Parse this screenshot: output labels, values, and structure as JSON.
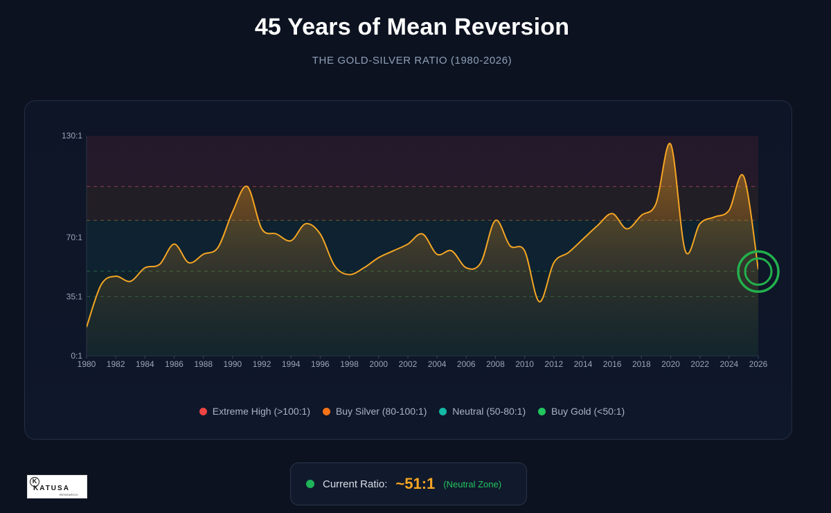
{
  "header": {
    "title": "45 Years of Mean Reversion",
    "subtitle": "THE GOLD-SILVER RATIO (1980-2026)"
  },
  "chart_data": {
    "type": "area",
    "title": "45 Years of Mean Reversion",
    "subtitle": "THE GOLD-SILVER RATIO (1980-2026)",
    "xlabel": "",
    "ylabel": "",
    "xlim": [
      1980,
      2026
    ],
    "ylim": [
      0,
      130
    ],
    "x_ticks": [
      "1980",
      "1982",
      "1984",
      "1986",
      "1988",
      "1990",
      "1992",
      "1994",
      "1996",
      "1998",
      "2000",
      "2002",
      "2004",
      "2006",
      "2008",
      "2010",
      "2012",
      "2014",
      "2016",
      "2018",
      "2020",
      "2022",
      "2024",
      "2026"
    ],
    "y_ticks": [
      {
        "value": 0,
        "label": "0:1"
      },
      {
        "value": 35,
        "label": "35:1"
      },
      {
        "value": 70,
        "label": "70:1"
      },
      {
        "value": 130,
        "label": "130:1"
      }
    ],
    "zones": [
      {
        "name": "Extreme High",
        "from": 100,
        "to": 130,
        "color": "#ef4444"
      },
      {
        "name": "Buy Silver",
        "from": 80,
        "to": 100,
        "color": "#f97316"
      },
      {
        "name": "Neutral",
        "from": 50,
        "to": 80,
        "color": "#14b8a6"
      },
      {
        "name": "Buy Gold",
        "from": 0,
        "to": 50,
        "color": "#22c55e"
      }
    ],
    "reference_lines": [
      100,
      80,
      50,
      35
    ],
    "series": [
      {
        "name": "Gold-Silver Ratio",
        "color": "#f5a623",
        "x": [
          1980,
          1981,
          1982,
          1983,
          1984,
          1985,
          1986,
          1987,
          1988,
          1989,
          1990,
          1991,
          1992,
          1993,
          1994,
          1995,
          1996,
          1997,
          1998,
          1999,
          2000,
          2001,
          2002,
          2003,
          2004,
          2005,
          2006,
          2007,
          2008,
          2009,
          2010,
          2011,
          2012,
          2013,
          2014,
          2015,
          2016,
          2017,
          2018,
          2019,
          2020,
          2021,
          2022,
          2023,
          2024,
          2025,
          2026
        ],
        "values": [
          17,
          42,
          47,
          44,
          52,
          54,
          66,
          55,
          60,
          64,
          85,
          100,
          75,
          72,
          68,
          78,
          72,
          53,
          48,
          52,
          58,
          62,
          66,
          72,
          60,
          62,
          52,
          55,
          80,
          65,
          62,
          32,
          55,
          61,
          69,
          77,
          84,
          75,
          83,
          90,
          125,
          62,
          78,
          82,
          86,
          106,
          51
        ]
      }
    ],
    "legend_position": "bottom",
    "annotation": {
      "year": 2026,
      "value": 51,
      "label": "current"
    }
  },
  "legend": [
    {
      "label": "Extreme High (>100:1)",
      "color": "#ef4444"
    },
    {
      "label": "Buy Silver (80-100:1)",
      "color": "#f97316"
    },
    {
      "label": "Neutral (50-80:1)",
      "color": "#14b8a6"
    },
    {
      "label": "Buy Gold (<50:1)",
      "color": "#22c55e"
    }
  ],
  "status": {
    "label": "Current Ratio:",
    "value": "~51:1",
    "zone": "(Neutral Zone)"
  },
  "logo": {
    "mark": "K",
    "name": "KATUSA",
    "sub": "RESEARCH"
  }
}
